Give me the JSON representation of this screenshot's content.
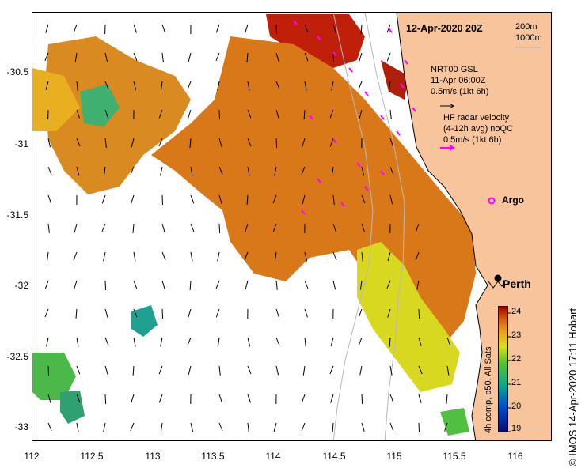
{
  "map": {
    "date_title": "12-Apr-2020 20Z",
    "contour_200": "200m",
    "contour_1000": "1000m",
    "gsl_title": "NRT00 GSL",
    "gsl_time": "11-Apr 06:00Z",
    "gsl_scale": "0.5m/s (1kt 6h)",
    "hf_title": "HF radar velocity",
    "hf_avg": "(4-12h avg) noQC",
    "hf_scale": "0.5m/s (1kt 6h)",
    "argo_label": "Argo",
    "city_label": "Perth",
    "colors": {
      "land": "#f8c49c",
      "hf_vector": "#ff00ff",
      "gsl_vector": "#000000"
    }
  },
  "axes": {
    "y_ticks": [
      "-30.5",
      "-31",
      "-31.5",
      "-32",
      "-32.5",
      "-33"
    ],
    "x_ticks": [
      "112",
      "112.5",
      "113",
      "113.5",
      "114",
      "114.5",
      "115",
      "115.5",
      "116"
    ],
    "lon_range": [
      112,
      116.3
    ],
    "lat_range": [
      -33.12,
      -30.12
    ]
  },
  "colorbar": {
    "label": "4h comp, p50, All Sats",
    "ticks": [
      "24",
      "23",
      "22",
      "21",
      "20",
      "19"
    ],
    "range": [
      18.9,
      24.3
    ]
  },
  "credit": "IMOS 14-Apr-2020 17:11 Hobart",
  "copyright": "©"
}
